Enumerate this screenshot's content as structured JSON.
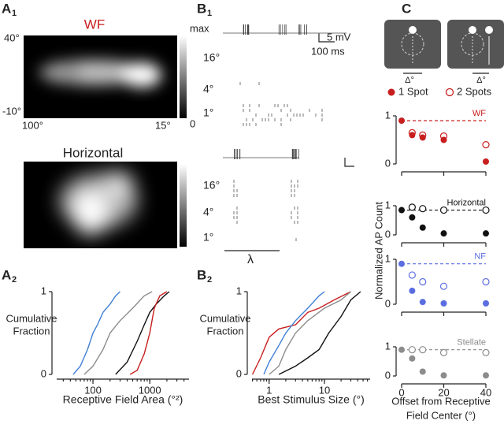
{
  "panel_a1": {
    "label": "A",
    "sub": "1",
    "wf_title": "WF",
    "y_top": "40°",
    "y_bottom": "-10°",
    "x_left": "100°",
    "x_right": "15°",
    "cbar_max": "max",
    "cbar_min": "0",
    "horizontal_title": "Horizontal"
  },
  "panel_b1": {
    "label": "B",
    "sub": "1",
    "scale_mv": "5 mV",
    "scale_ms": "100 ms",
    "rows_1": [
      "16°",
      "4°",
      "1°"
    ],
    "rows_2": [
      "16°",
      "4°",
      "1°"
    ],
    "lambda": "λ"
  },
  "panel_a2": {
    "label": "A",
    "sub": "2",
    "ylabel": [
      "Cumulative",
      "Fraction"
    ],
    "xlabel": "Receptive Field Area (°²)",
    "log_x": true,
    "xlim": [
      23,
      4900
    ],
    "ylim": [
      0,
      1
    ],
    "xticks": [
      100,
      1000
    ],
    "yticks": [
      0,
      1
    ],
    "series": [
      {
        "color": "#3f7fd6",
        "x": [
          45,
          60,
          80,
          100,
          120,
          150,
          200,
          250,
          300
        ],
        "y": [
          0,
          0.1,
          0.3,
          0.5,
          0.6,
          0.75,
          0.85,
          0.95,
          1
        ]
      },
      {
        "color": "#8c8c8c",
        "x": [
          70,
          100,
          150,
          200,
          300,
          500,
          800,
          1100
        ],
        "y": [
          0,
          0.1,
          0.3,
          0.5,
          0.65,
          0.8,
          0.95,
          1
        ]
      },
      {
        "color": "#111111",
        "x": [
          250,
          400,
          600,
          800,
          1000,
          1300,
          1800,
          2200
        ],
        "y": [
          0,
          0.15,
          0.4,
          0.6,
          0.75,
          0.85,
          0.95,
          1
        ]
      },
      {
        "color": "#c81e1e",
        "x": [
          450,
          600,
          800,
          1000,
          1200,
          1500,
          2000
        ],
        "y": [
          0,
          0.05,
          0.25,
          0.5,
          0.8,
          0.95,
          1
        ]
      }
    ]
  },
  "panel_b2": {
    "label": "B",
    "sub": "2",
    "ylabel": [
      "Cumulative",
      "Fraction"
    ],
    "xlabel": "Best Stimulus Size (°)",
    "log_x": true,
    "xlim": [
      0.49,
      67
    ],
    "ylim": [
      0,
      1
    ],
    "xticks": [
      1,
      10
    ],
    "yticks": [
      0,
      1
    ],
    "series": [
      {
        "color": "#c81e1e",
        "x": [
          0.5,
          0.7,
          1,
          1.5,
          3,
          5,
          8,
          15,
          30
        ],
        "y": [
          0,
          0.2,
          0.45,
          0.55,
          0.6,
          0.75,
          0.8,
          0.9,
          1
        ]
      },
      {
        "color": "#3f7fd6",
        "x": [
          0.8,
          1,
          1.5,
          2,
          3,
          5,
          8,
          10
        ],
        "y": [
          0,
          0.15,
          0.35,
          0.5,
          0.65,
          0.8,
          0.95,
          1
        ]
      },
      {
        "color": "#8c8c8c",
        "x": [
          1,
          1.5,
          2,
          3,
          5,
          10,
          20,
          30
        ],
        "y": [
          0,
          0.1,
          0.3,
          0.5,
          0.65,
          0.8,
          0.9,
          1
        ]
      },
      {
        "color": "#111111",
        "x": [
          1.5,
          3,
          5,
          8,
          12,
          20,
          30,
          45
        ],
        "y": [
          0,
          0.1,
          0.2,
          0.3,
          0.5,
          0.7,
          0.9,
          1
        ]
      }
    ]
  },
  "panel_c": {
    "label": "C",
    "delta": [
      "Δ°",
      "Δ°"
    ],
    "legend": [
      "1 Spot",
      "2 Spots"
    ],
    "legend_color": "#c81e1e",
    "ylabel": "Normalized AP Count",
    "xlabel": [
      "Offset from Receptive",
      "Field Center (°)"
    ],
    "xlim": [
      0,
      40
    ],
    "xticks": [
      0,
      20,
      40
    ],
    "ylim": [
      0,
      1
    ],
    "yticks": [
      0,
      1
    ],
    "subplots": [
      {
        "label": "WF",
        "color": "#c81e1e",
        "baseline": 0.9,
        "one_spot": {
          "x": [
            0,
            5,
            10,
            20,
            40
          ],
          "values": [
            0.9,
            0.6,
            0.55,
            0.5,
            0.05
          ]
        },
        "two_spots": {
          "x": [
            5,
            10,
            20,
            40
          ],
          "values": [
            0.65,
            0.6,
            0.58,
            0.4
          ]
        }
      },
      {
        "label": "Horizontal",
        "color": "#111111",
        "baseline": 0.85,
        "one_spot": {
          "x": [
            0,
            5,
            10,
            20,
            40
          ],
          "values": [
            0.85,
            0.6,
            0.25,
            0.05,
            0.05
          ]
        },
        "two_spots": {
          "x": [
            5,
            10,
            20,
            40
          ],
          "values": [
            0.95,
            0.9,
            0.85,
            0.85
          ]
        }
      },
      {
        "label": "NF",
        "color": "#5b6ee1",
        "baseline": 0.9,
        "one_spot": {
          "x": [
            0,
            5,
            10,
            20,
            40
          ],
          "values": [
            0.9,
            0.3,
            0.05,
            0.02,
            0.02
          ]
        },
        "two_spots": {
          "x": [
            5,
            10,
            20,
            40
          ],
          "values": [
            0.65,
            0.5,
            0.4,
            0.5
          ]
        }
      },
      {
        "label": "Stellate",
        "color": "#8c8c8c",
        "baseline": 0.9,
        "one_spot": {
          "x": [
            0,
            5,
            10,
            20,
            40
          ],
          "values": [
            0.9,
            0.6,
            0.15,
            0.02,
            0.02
          ]
        },
        "two_spots": {
          "x": [
            5,
            10,
            20,
            40
          ],
          "values": [
            0.9,
            0.9,
            0.8,
            0.8
          ]
        }
      }
    ]
  }
}
